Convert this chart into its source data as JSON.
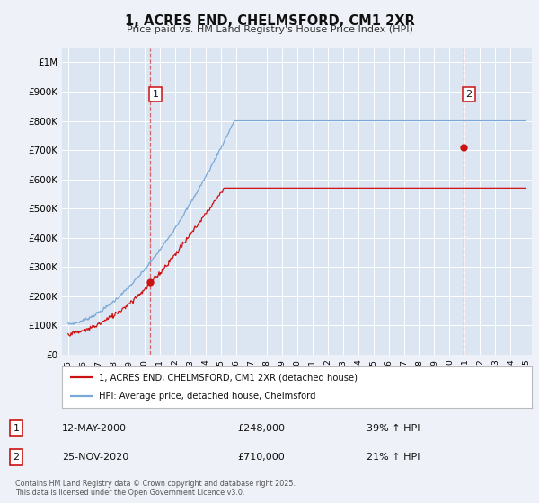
{
  "title": "1, ACRES END, CHELMSFORD, CM1 2XR",
  "subtitle": "Price paid vs. HM Land Registry's House Price Index (HPI)",
  "bg_color": "#eef2f8",
  "plot_bg_color": "#dce6f2",
  "grid_color": "#ffffff",
  "red_color": "#cc1111",
  "blue_color": "#7aa8d8",
  "sale1_date": 2000.36,
  "sale1_price": 248000,
  "sale1_label": "1",
  "sale2_date": 2020.9,
  "sale2_price": 710000,
  "sale2_label": "2",
  "ylabel_ticks": [
    0,
    100000,
    200000,
    300000,
    400000,
    500000,
    600000,
    700000,
    800000,
    900000,
    1000000
  ],
  "ylabel_labels": [
    "£0",
    "£100K",
    "£200K",
    "£300K",
    "£400K",
    "£500K",
    "£600K",
    "£700K",
    "£800K",
    "£900K",
    "£1M"
  ],
  "xmin": 1994.6,
  "xmax": 2025.4,
  "ymin": 0,
  "ymax": 1050000,
  "legend_line1": "1, ACRES END, CHELMSFORD, CM1 2XR (detached house)",
  "legend_line2": "HPI: Average price, detached house, Chelmsford",
  "table_row1_num": "1",
  "table_row1_date": "12-MAY-2000",
  "table_row1_price": "£248,000",
  "table_row1_hpi": "39% ↑ HPI",
  "table_row2_num": "2",
  "table_row2_date": "25-NOV-2020",
  "table_row2_price": "£710,000",
  "table_row2_hpi": "21% ↑ HPI",
  "footer": "Contains HM Land Registry data © Crown copyright and database right 2025.\nThis data is licensed under the Open Government Licence v3.0."
}
